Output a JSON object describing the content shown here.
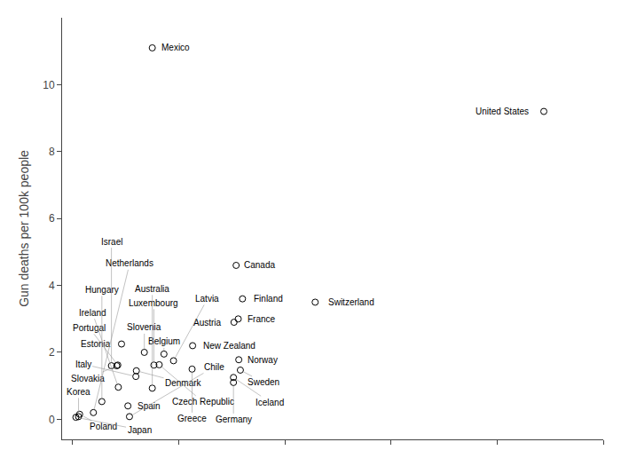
{
  "chart_data": {
    "type": "scatter",
    "ylabel": "Gun deaths per 100k people",
    "labels": [
      "United States",
      "Mexico",
      "Canada",
      "Finland",
      "Switzerland",
      "France",
      "Austria",
      "New Zealand",
      "Estonia",
      "Slovenia",
      "Belgium",
      "Norway",
      "Czech Republic",
      "Sweden",
      "Slovakia",
      "Denmark",
      "Greece",
      "Iceland",
      "Germany",
      "Luxembourg",
      "Portugal",
      "Italy",
      "Ireland",
      "Australia",
      "Hungary",
      "Spain",
      "Netherlands",
      "Poland",
      "Japan",
      "Korea",
      "Chile",
      "Latvia",
      "Israel"
    ],
    "x": [
      88.8,
      15.0,
      30.8,
      32.0,
      45.7,
      31.2,
      30.4,
      22.6,
      9.2,
      13.5,
      17.2,
      31.3,
      16.3,
      31.6,
      8.3,
      12.0,
      22.5,
      30.3,
      30.3,
      15.3,
      8.5,
      11.9,
      8.6,
      15.0,
      5.5,
      10.4,
      3.9,
      1.3,
      0.6,
      1.1,
      10.7,
      19.0,
      7.3
    ],
    "values": [
      9.2,
      11.1,
      4.6,
      3.6,
      3.5,
      3.0,
      2.9,
      2.2,
      2.25,
      2.0,
      1.95,
      1.78,
      1.63,
      1.47,
      1.6,
      1.45,
      1.5,
      1.25,
      1.1,
      1.62,
      1.62,
      1.28,
      0.96,
      0.93,
      0.53,
      0.4,
      0.2,
      0.15,
      0.06,
      0.08,
      0.08,
      1.75,
      1.6
    ],
    "xlim": [
      -2,
      100
    ],
    "ylim": [
      -0.6,
      12.0
    ],
    "xticks": [
      0,
      20,
      40,
      60,
      80,
      100
    ],
    "yticks": [
      0,
      2,
      4,
      6,
      8,
      10
    ],
    "tick_labels": "y",
    "grid": false,
    "color": "#000000",
    "marker": "circle-open"
  }
}
